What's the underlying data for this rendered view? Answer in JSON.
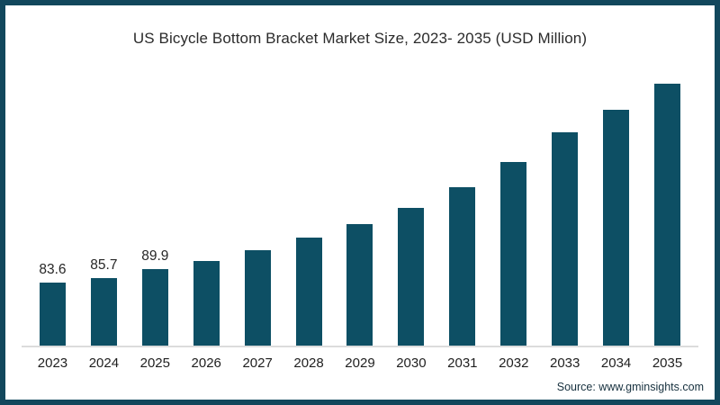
{
  "frame": {
    "border_color": "#12475c",
    "background_color": "#ffffff"
  },
  "chart_data": {
    "type": "bar",
    "title": "US Bicycle Bottom Bracket Market Size, 2023- 2035 (USD Million)",
    "xlabel": "",
    "ylabel": "",
    "categories": [
      "2023",
      "2024",
      "2025",
      "2026",
      "2027",
      "2028",
      "2029",
      "2030",
      "2031",
      "2032",
      "2033",
      "2034",
      "2035"
    ],
    "values": [
      83.6,
      85.7,
      89.9,
      93.9,
      98.9,
      104.9,
      111.2,
      118.8,
      128.5,
      140.4,
      154.3,
      164.9,
      177.1
    ],
    "data_labels": [
      "83.6",
      "85.7",
      "89.9",
      null,
      null,
      null,
      null,
      null,
      null,
      null,
      null,
      null,
      null
    ],
    "ylim": [
      53.7,
      180
    ],
    "bar_color": "#0d4f64",
    "grid": "off",
    "legend": "none",
    "axis_line_color": "#dcdcdc"
  },
  "source": {
    "label": "Source: www.gminsights.com"
  }
}
